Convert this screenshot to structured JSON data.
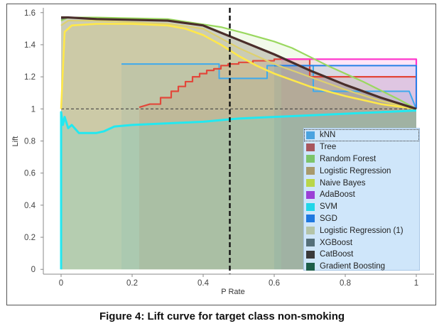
{
  "caption": "Figure 4: Lift curve for target class non-smoking",
  "chart_data": {
    "type": "line",
    "xlabel": "P Rate",
    "ylabel": "Lift",
    "xlim": [
      -0.05,
      1.05
    ],
    "ylim": [
      -0.03,
      1.63
    ],
    "x_ticks": [
      "0",
      "0.2",
      "0.4",
      "0.6",
      "0.8",
      "1"
    ],
    "y_ticks": [
      "0",
      "0.2",
      "0.4",
      "0.6",
      "0.8",
      "1",
      "1.2",
      "1.4",
      "1.6"
    ],
    "threshold_x": 0.475,
    "baseline_y": 1.0,
    "legend_position": "bottom-right",
    "legend": [
      {
        "label": "kNN",
        "color": "#4aa3e0"
      },
      {
        "label": "Tree",
        "color": "#a8575e"
      },
      {
        "label": "Random Forest",
        "color": "#7cc46a"
      },
      {
        "label": "Logistic Regression",
        "color": "#a89a6c"
      },
      {
        "label": "Naive Bayes",
        "color": "#b9d64a"
      },
      {
        "label": "AdaBoost",
        "color": "#9b3fd6"
      },
      {
        "label": "SVM",
        "color": "#22d6e8"
      },
      {
        "label": "SGD",
        "color": "#1f78e0"
      },
      {
        "label": "Logistic Regression (1)",
        "color": "#b4c4a8"
      },
      {
        "label": "XGBoost",
        "color": "#55707a"
      },
      {
        "label": "CatBoost",
        "color": "#3a3a3a"
      },
      {
        "label": "Gradient Boosting",
        "color": "#1c5e4a"
      }
    ],
    "series": [
      {
        "name": "kNN",
        "color": "#3fa9ec",
        "width": 2,
        "x": [
          0.17,
          0.17,
          0.445,
          0.445,
          0.58,
          0.58,
          0.71,
          0.71,
          0.98,
          1.0
        ],
        "y": [
          1.28,
          1.28,
          1.28,
          1.19,
          1.19,
          1.27,
          1.27,
          1.11,
          1.11,
          1.0
        ]
      },
      {
        "name": "Tree",
        "color": "#e2473a",
        "width": 2.2,
        "x": [
          0.22,
          0.25,
          0.28,
          0.28,
          0.31,
          0.31,
          0.33,
          0.33,
          0.35,
          0.35,
          0.37,
          0.37,
          0.39,
          0.39,
          0.41,
          0.41,
          0.43,
          0.43,
          0.45,
          0.45,
          0.47,
          0.47,
          0.5,
          0.5,
          0.54,
          0.54,
          0.6,
          0.6,
          0.7,
          0.7,
          1.0
        ],
        "y": [
          1.01,
          1.03,
          1.03,
          1.07,
          1.07,
          1.11,
          1.11,
          1.14,
          1.14,
          1.17,
          1.17,
          1.2,
          1.2,
          1.22,
          1.22,
          1.24,
          1.24,
          1.25,
          1.25,
          1.27,
          1.27,
          1.28,
          1.28,
          1.29,
          1.29,
          1.3,
          1.3,
          1.31,
          1.31,
          1.2,
          1.2
        ]
      },
      {
        "name": "AdaBoost",
        "color": "#ff33cc",
        "width": 2.2,
        "x": [
          0.62,
          1.0,
          1.0
        ],
        "y": [
          1.31,
          1.31,
          1.0
        ]
      },
      {
        "name": "SGD",
        "color": "#2580e8",
        "width": 2,
        "x": [
          0.6,
          1.0,
          1.0
        ],
        "y": [
          1.27,
          1.27,
          1.0
        ]
      },
      {
        "name": "Random Forest",
        "color": "#9ad85f",
        "width": 2.2,
        "x": [
          0.0,
          0.02,
          0.1,
          0.3,
          0.45,
          0.52,
          0.6,
          0.65,
          0.75,
          0.85,
          0.95,
          1.0
        ],
        "y": [
          1.55,
          1.57,
          1.57,
          1.56,
          1.51,
          1.47,
          1.42,
          1.38,
          1.27,
          1.17,
          1.06,
          1.0
        ]
      },
      {
        "name": "Naive Bayes",
        "color": "#ffe84a",
        "width": 2.6,
        "x": [
          0.0,
          0.01,
          0.03,
          0.1,
          0.2,
          0.3,
          0.35,
          0.4,
          0.45,
          0.5,
          0.55,
          0.6,
          0.7,
          0.8,
          0.9,
          1.0
        ],
        "y": [
          1.0,
          1.48,
          1.52,
          1.53,
          1.53,
          1.52,
          1.5,
          1.46,
          1.4,
          1.33,
          1.27,
          1.22,
          1.14,
          1.08,
          1.03,
          1.0
        ]
      },
      {
        "name": "Logistic Regression",
        "color": "#ddd070",
        "width": 2.2,
        "x": [
          0.0,
          0.02,
          0.1,
          0.3,
          0.4,
          0.45,
          0.5,
          0.6,
          0.7,
          0.8,
          0.9,
          1.0
        ],
        "y": [
          1.52,
          1.55,
          1.55,
          1.53,
          1.5,
          1.44,
          1.38,
          1.28,
          1.2,
          1.12,
          1.05,
          1.0
        ]
      },
      {
        "name": "XGBoost",
        "color": "#6c7b6e",
        "width": 2,
        "x": [
          0.0,
          0.02,
          0.1,
          0.3,
          0.4,
          0.5,
          0.6,
          0.7,
          0.8,
          0.9,
          1.0
        ],
        "y": [
          1.56,
          1.57,
          1.56,
          1.55,
          1.52,
          1.43,
          1.34,
          1.24,
          1.15,
          1.07,
          1.0
        ]
      },
      {
        "name": "CatBoost",
        "color": "#4a2e2a",
        "width": 3.2,
        "x": [
          0.0,
          0.02,
          0.1,
          0.3,
          0.4,
          0.5,
          0.6,
          0.7,
          0.8,
          0.9,
          1.0
        ],
        "y": [
          1.57,
          1.57,
          1.56,
          1.55,
          1.52,
          1.43,
          1.34,
          1.24,
          1.15,
          1.07,
          1.0
        ]
      },
      {
        "name": "SVM",
        "color": "#22e8f0",
        "width": 3,
        "x": [
          0.0,
          0.0,
          0.005,
          0.01,
          0.02,
          0.03,
          0.05,
          0.08,
          0.1,
          0.12,
          0.15,
          0.2,
          0.3,
          0.4,
          0.5,
          0.6,
          0.7,
          0.8,
          0.9,
          1.0
        ],
        "y": [
          0.0,
          0.98,
          0.9,
          0.95,
          0.88,
          0.9,
          0.85,
          0.85,
          0.85,
          0.86,
          0.89,
          0.9,
          0.91,
          0.92,
          0.94,
          0.95,
          0.96,
          0.97,
          0.98,
          0.99
        ]
      }
    ]
  }
}
